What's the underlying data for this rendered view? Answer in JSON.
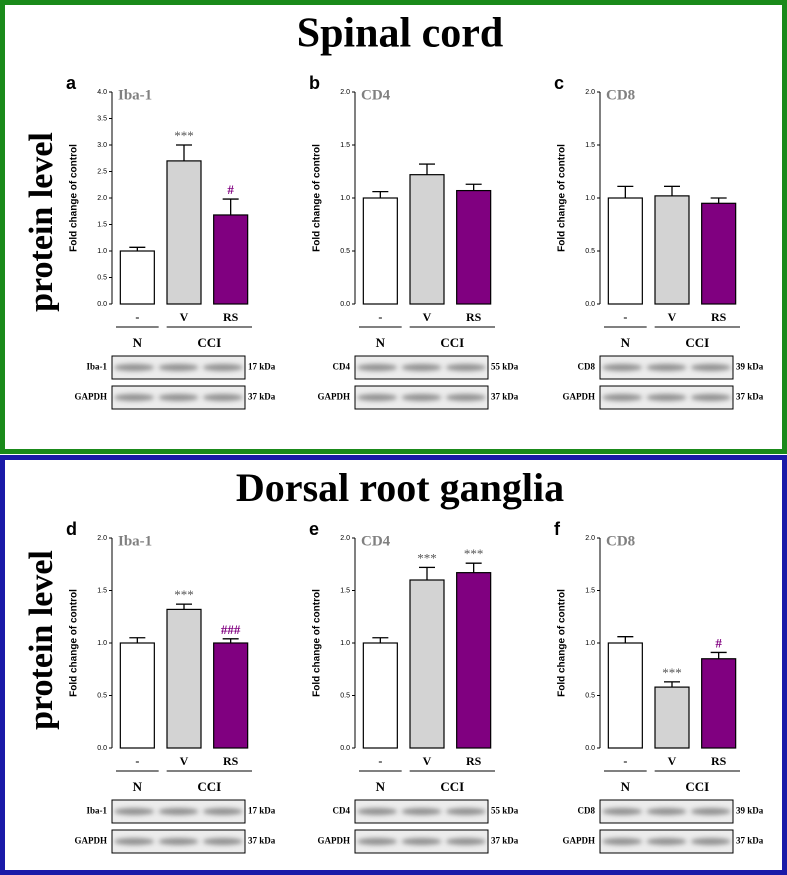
{
  "sections": [
    {
      "title": "Spinal cord",
      "side_label": "protein level"
    },
    {
      "title": "Dorsal root ganglia",
      "side_label": "protein level"
    }
  ],
  "chart_data": [
    {
      "type": "bar",
      "panel": "a",
      "title": "Iba-1",
      "ylabel": "Fold change of control",
      "categories": [
        "-",
        "V",
        "RS"
      ],
      "group_labels": [
        "N",
        "CCI"
      ],
      "values": [
        1.0,
        2.7,
        1.68
      ],
      "errors": [
        0.07,
        0.3,
        0.3
      ],
      "colors": [
        "#ffffff",
        "#d3d3d3",
        "#800080"
      ],
      "annotations": [
        null,
        {
          "text": "***",
          "color": "#555555"
        },
        {
          "text": "#",
          "color": "#800080"
        }
      ],
      "ylim": [
        0,
        4
      ],
      "yticks": [
        {
          "value": 0,
          "label": "0.0"
        },
        {
          "value": 0.5,
          "label": "0.5"
        },
        {
          "value": 1,
          "label": "1.0"
        },
        {
          "value": 1.5,
          "label": "1.5"
        },
        {
          "value": 2,
          "label": "2.0"
        },
        {
          "value": 2.5,
          "label": "2.5"
        },
        {
          "value": 3,
          "label": "3.0"
        },
        {
          "value": 3.5,
          "label": "3.5"
        },
        {
          "value": 4,
          "label": "4.0"
        }
      ],
      "blots": [
        {
          "label": "Iba-1",
          "weight": "17 kDa"
        },
        {
          "label": "GAPDH",
          "weight": "37 kDa"
        }
      ]
    },
    {
      "type": "bar",
      "panel": "b",
      "title": "CD4",
      "ylabel": "Fold change of control",
      "categories": [
        "-",
        "V",
        "RS"
      ],
      "group_labels": [
        "N",
        "CCI"
      ],
      "values": [
        1.0,
        1.22,
        1.07
      ],
      "errors": [
        0.06,
        0.1,
        0.06
      ],
      "colors": [
        "#ffffff",
        "#d3d3d3",
        "#800080"
      ],
      "annotations": [
        null,
        null,
        null
      ],
      "ylim": [
        0,
        2
      ],
      "yticks": [
        {
          "value": 0,
          "label": "0.0"
        },
        {
          "value": 0.5,
          "label": "0.5"
        },
        {
          "value": 1,
          "label": "1.0"
        },
        {
          "value": 1.5,
          "label": "1.5"
        },
        {
          "value": 2,
          "label": "2.0"
        }
      ],
      "blots": [
        {
          "label": "CD4",
          "weight": "55 kDa"
        },
        {
          "label": "GAPDH",
          "weight": "37 kDa"
        }
      ]
    },
    {
      "type": "bar",
      "panel": "c",
      "title": "CD8",
      "ylabel": "Fold change of control",
      "categories": [
        "-",
        "V",
        "RS"
      ],
      "group_labels": [
        "N",
        "CCI"
      ],
      "values": [
        1.0,
        1.02,
        0.95
      ],
      "errors": [
        0.11,
        0.09,
        0.05
      ],
      "colors": [
        "#ffffff",
        "#d3d3d3",
        "#800080"
      ],
      "annotations": [
        null,
        null,
        null
      ],
      "ylim": [
        0,
        2
      ],
      "yticks": [
        {
          "value": 0,
          "label": "0.0"
        },
        {
          "value": 0.5,
          "label": "0.5"
        },
        {
          "value": 1,
          "label": "1.0"
        },
        {
          "value": 1.5,
          "label": "1.5"
        },
        {
          "value": 2,
          "label": "2.0"
        }
      ],
      "blots": [
        {
          "label": "CD8",
          "weight": "39 kDa"
        },
        {
          "label": "GAPDH",
          "weight": "37 kDa"
        }
      ]
    },
    {
      "type": "bar",
      "panel": "d",
      "title": "Iba-1",
      "ylabel": "Fold change of control",
      "categories": [
        "-",
        "V",
        "RS"
      ],
      "group_labels": [
        "N",
        "CCI"
      ],
      "values": [
        1.0,
        1.32,
        1.0
      ],
      "errors": [
        0.05,
        0.05,
        0.04
      ],
      "colors": [
        "#ffffff",
        "#d3d3d3",
        "#800080"
      ],
      "annotations": [
        null,
        {
          "text": "***",
          "color": "#555555"
        },
        {
          "text": "###",
          "color": "#800080"
        }
      ],
      "ylim": [
        0,
        2
      ],
      "yticks": [
        {
          "value": 0,
          "label": "0.0"
        },
        {
          "value": 0.5,
          "label": "0.5"
        },
        {
          "value": 1,
          "label": "1.0"
        },
        {
          "value": 1.5,
          "label": "1.5"
        },
        {
          "value": 2,
          "label": "2.0"
        }
      ],
      "blots": [
        {
          "label": "Iba-1",
          "weight": "17 kDa"
        },
        {
          "label": "GAPDH",
          "weight": "37 kDa"
        }
      ]
    },
    {
      "type": "bar",
      "panel": "e",
      "title": "CD4",
      "ylabel": "Fold change of control",
      "categories": [
        "-",
        "V",
        "RS"
      ],
      "group_labels": [
        "N",
        "CCI"
      ],
      "values": [
        1.0,
        1.6,
        1.67
      ],
      "errors": [
        0.05,
        0.12,
        0.09
      ],
      "colors": [
        "#ffffff",
        "#d3d3d3",
        "#800080"
      ],
      "annotations": [
        null,
        {
          "text": "***",
          "color": "#555555"
        },
        {
          "text": "***",
          "color": "#555555"
        }
      ],
      "ylim": [
        0,
        2
      ],
      "yticks": [
        {
          "value": 0,
          "label": "0.0"
        },
        {
          "value": 0.5,
          "label": "0.5"
        },
        {
          "value": 1,
          "label": "1.0"
        },
        {
          "value": 1.5,
          "label": "1.5"
        },
        {
          "value": 2,
          "label": "2.0"
        }
      ],
      "blots": [
        {
          "label": "CD4",
          "weight": "55 kDa"
        },
        {
          "label": "GAPDH",
          "weight": "37 kDa"
        }
      ]
    },
    {
      "type": "bar",
      "panel": "f",
      "title": "CD8",
      "ylabel": "Fold change of control",
      "categories": [
        "-",
        "V",
        "RS"
      ],
      "group_labels": [
        "N",
        "CCI"
      ],
      "values": [
        1.0,
        0.58,
        0.85
      ],
      "errors": [
        0.06,
        0.05,
        0.06
      ],
      "colors": [
        "#ffffff",
        "#d3d3d3",
        "#800080"
      ],
      "annotations": [
        null,
        {
          "text": "***",
          "color": "#555555"
        },
        {
          "text": "#",
          "color": "#800080"
        }
      ],
      "ylim": [
        0,
        2
      ],
      "yticks": [
        {
          "value": 0,
          "label": "0.0"
        },
        {
          "value": 0.5,
          "label": "0.5"
        },
        {
          "value": 1,
          "label": "1.0"
        },
        {
          "value": 1.5,
          "label": "1.5"
        },
        {
          "value": 2,
          "label": "2.0"
        }
      ],
      "blots": [
        {
          "label": "CD8",
          "weight": "39 kDa"
        },
        {
          "label": "GAPDH",
          "weight": "37 kDa"
        }
      ]
    }
  ]
}
